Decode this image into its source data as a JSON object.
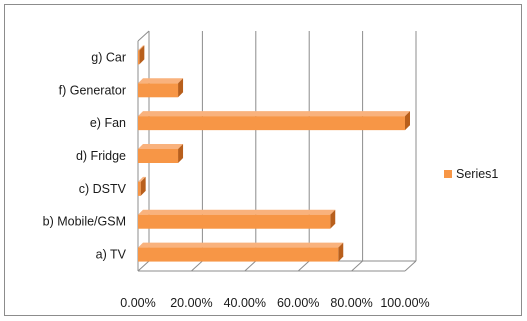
{
  "chart_data": {
    "type": "bar",
    "orientation": "horizontal",
    "style": "3d",
    "categories": [
      "a) TV",
      "b) Mobile/GSM",
      "c) DSTV",
      "d) Fridge",
      "e) Fan",
      "f) Generator",
      "g) Car"
    ],
    "series": [
      {
        "name": "Series1",
        "values": [
          0.75,
          0.72,
          0.01,
          0.15,
          1.0,
          0.15,
          0.005
        ]
      }
    ],
    "x_ticks": [
      "0.00%",
      "20.00%",
      "40.00%",
      "60.00%",
      "80.00%",
      "100.00%"
    ],
    "xlim": [
      0,
      1
    ],
    "title": "",
    "xlabel": "",
    "ylabel": "",
    "grid": true,
    "legend_position": "right",
    "colors": {
      "bar_front": "#f79646",
      "bar_top": "#f9b27d",
      "bar_side": "#b85f1c",
      "grid": "#8c8c8c"
    }
  }
}
